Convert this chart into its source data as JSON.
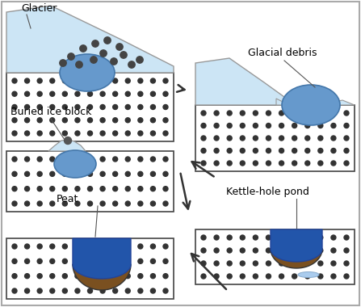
{
  "fig_w": 4.47,
  "fig_h": 3.8,
  "dpi": 100,
  "glacier_fill": "#cce5f5",
  "glacier_edge": "#999999",
  "ice_fill": "#6699cc",
  "ice_edge": "#4477aa",
  "water_fill": "#2255aa",
  "peat_fill": "#7a5020",
  "puddle_fill": "#aaccee",
  "dot_color": "#333333",
  "box_edge": "#444444",
  "arrow_color": "#333333",
  "label_fs": 9,
  "dot_r": 3.0,
  "dot_sp": 16,
  "labels": {
    "glacier": "Glacier",
    "glacial_debris": "Glacial debris",
    "buried_ice": "Buried ice block",
    "kettle_hole": "Kettle-hole pond",
    "peat": "Peat"
  }
}
